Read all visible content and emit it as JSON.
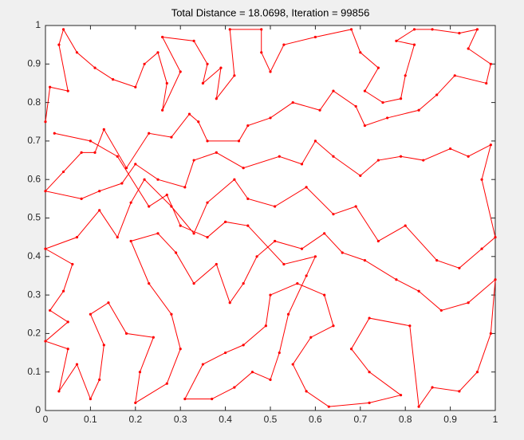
{
  "chart_data": {
    "type": "line",
    "title": "Total Distance = 18.0698, Iteration = 99856",
    "color": "#ff0000",
    "xlim": [
      0,
      1
    ],
    "ylim": [
      0,
      1
    ],
    "xticks": [
      0,
      0.1,
      0.2,
      0.3,
      0.4,
      0.5,
      0.6,
      0.7,
      0.8,
      0.9,
      1
    ],
    "yticks": [
      0,
      0.1,
      0.2,
      0.3,
      0.4,
      0.5,
      0.6,
      0.7,
      0.8,
      0.9,
      1
    ],
    "x": [
      0.0,
      0.01,
      0.05,
      0.03,
      0.04,
      0.07,
      0.11,
      0.15,
      0.2,
      0.22,
      0.25,
      0.27,
      0.26,
      0.3,
      0.26,
      0.33,
      0.36,
      0.35,
      0.39,
      0.38,
      0.42,
      0.41,
      0.48,
      0.48,
      0.5,
      0.53,
      0.6,
      0.68,
      0.7,
      0.74,
      0.71,
      0.75,
      0.79,
      0.8,
      0.82,
      0.78,
      0.82,
      0.86,
      0.92,
      0.96,
      0.94,
      0.99,
      0.98,
      0.91,
      0.87,
      0.83,
      0.76,
      0.71,
      0.69,
      0.64,
      0.61,
      0.55,
      0.5,
      0.45,
      0.43,
      0.36,
      0.34,
      0.32,
      0.28,
      0.23,
      0.18,
      0.13,
      0.11,
      0.08,
      0.04,
      0.0,
      0.08,
      0.12,
      0.17,
      0.2,
      0.25,
      0.31,
      0.33,
      0.38,
      0.44,
      0.52,
      0.57,
      0.6,
      0.64,
      0.7,
      0.74,
      0.79,
      0.84,
      0.9,
      0.94,
      0.99,
      0.97,
      1.0,
      0.97,
      0.92,
      0.87,
      0.8,
      0.74,
      0.69,
      0.64,
      0.58,
      0.51,
      0.45,
      0.42,
      0.36,
      0.33,
      0.28,
      0.22,
      0.19,
      0.16,
      0.12,
      0.07,
      0.0,
      0.06,
      0.04,
      0.01,
      0.05,
      0.0,
      0.05,
      0.03,
      0.07,
      0.1,
      0.12,
      0.13,
      0.1,
      0.14,
      0.18,
      0.24,
      0.21,
      0.2,
      0.27,
      0.3,
      0.28,
      0.23,
      0.19,
      0.25,
      0.29,
      0.33,
      0.38,
      0.41,
      0.44,
      0.47,
      0.51,
      0.57,
      0.62,
      0.66,
      0.71,
      0.78,
      0.83,
      0.88,
      0.94,
      1.0,
      0.99,
      0.96,
      0.92,
      0.86,
      0.83,
      0.81,
      0.72,
      0.68,
      0.72,
      0.79,
      0.72,
      0.63,
      0.58,
      0.55,
      0.59,
      0.64,
      0.62,
      0.56,
      0.5,
      0.49,
      0.44,
      0.4,
      0.35,
      0.31,
      0.37,
      0.42,
      0.46,
      0.5,
      0.52,
      0.54,
      0.58,
      0.6,
      0.53,
      0.45,
      0.4,
      0.36,
      0.3,
      0.27,
      0.23,
      0.16,
      0.1,
      0.02
    ],
    "y": [
      0.75,
      0.84,
      0.83,
      0.95,
      0.99,
      0.93,
      0.89,
      0.86,
      0.84,
      0.9,
      0.93,
      0.85,
      0.78,
      0.88,
      0.97,
      0.96,
      0.9,
      0.85,
      0.89,
      0.81,
      0.87,
      0.99,
      0.99,
      0.93,
      0.88,
      0.95,
      0.97,
      0.99,
      0.93,
      0.89,
      0.83,
      0.8,
      0.81,
      0.87,
      0.95,
      0.96,
      0.99,
      0.99,
      0.98,
      0.99,
      0.94,
      0.9,
      0.85,
      0.87,
      0.82,
      0.78,
      0.76,
      0.74,
      0.79,
      0.83,
      0.78,
      0.8,
      0.76,
      0.74,
      0.7,
      0.7,
      0.75,
      0.77,
      0.71,
      0.72,
      0.63,
      0.73,
      0.67,
      0.67,
      0.62,
      0.57,
      0.55,
      0.57,
      0.59,
      0.64,
      0.6,
      0.58,
      0.65,
      0.67,
      0.63,
      0.66,
      0.64,
      0.7,
      0.66,
      0.61,
      0.65,
      0.66,
      0.65,
      0.68,
      0.66,
      0.69,
      0.6,
      0.45,
      0.42,
      0.37,
      0.39,
      0.48,
      0.44,
      0.53,
      0.51,
      0.58,
      0.53,
      0.55,
      0.6,
      0.54,
      0.46,
      0.53,
      0.6,
      0.54,
      0.45,
      0.52,
      0.45,
      0.42,
      0.38,
      0.31,
      0.26,
      0.23,
      0.18,
      0.16,
      0.05,
      0.12,
      0.03,
      0.08,
      0.17,
      0.25,
      0.28,
      0.2,
      0.19,
      0.1,
      0.02,
      0.07,
      0.16,
      0.25,
      0.33,
      0.44,
      0.46,
      0.41,
      0.33,
      0.38,
      0.28,
      0.33,
      0.4,
      0.44,
      0.42,
      0.46,
      0.41,
      0.39,
      0.34,
      0.31,
      0.26,
      0.28,
      0.34,
      0.2,
      0.1,
      0.05,
      0.06,
      0.01,
      0.22,
      0.24,
      0.16,
      0.1,
      0.04,
      0.02,
      0.01,
      0.05,
      0.12,
      0.19,
      0.22,
      0.3,
      0.33,
      0.3,
      0.22,
      0.17,
      0.15,
      0.12,
      0.03,
      0.03,
      0.06,
      0.1,
      0.08,
      0.15,
      0.25,
      0.35,
      0.4,
      0.38,
      0.48,
      0.49,
      0.45,
      0.48,
      0.56,
      0.53,
      0.66,
      0.7,
      0.72
    ]
  }
}
